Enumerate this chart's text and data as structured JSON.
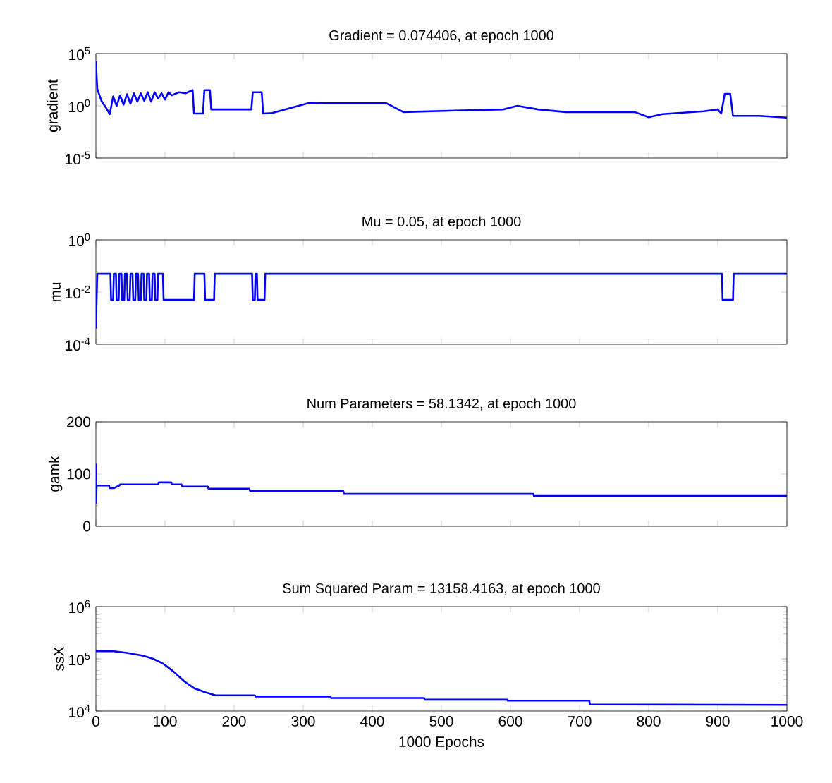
{
  "chart_data": [
    {
      "type": "line",
      "title": "Gradient = 0.074406, at epoch 1000",
      "ylabel": "gradient",
      "log": true,
      "tick_labels": "y",
      "color": "#0000ff",
      "xlim": [
        0,
        1000
      ],
      "xticks": [
        0,
        100,
        200,
        300,
        400,
        500,
        600,
        700,
        800,
        900,
        1000
      ],
      "ylim": [
        1e-05,
        100000
      ],
      "yticks": [
        {
          "value": 1e-05,
          "label": "10$^{-5}$"
        },
        {
          "value": 1,
          "label": "10$^{0}$"
        },
        {
          "value": 100000,
          "label": "10$^{5}$"
        }
      ],
      "x": [
        0,
        2,
        8,
        15,
        20,
        25,
        30,
        35,
        40,
        45,
        50,
        55,
        60,
        65,
        70,
        75,
        80,
        85,
        90,
        95,
        100,
        105,
        110,
        120,
        130,
        140,
        142,
        155,
        157,
        165,
        167,
        225,
        227,
        240,
        242,
        255,
        310,
        330,
        420,
        445,
        520,
        590,
        610,
        640,
        680,
        780,
        800,
        820,
        880,
        900,
        905,
        910,
        918,
        922,
        960,
        1000
      ],
      "values": [
        18000,
        40,
        3,
        0.6,
        0.16,
        8,
        1,
        10,
        1.3,
        13,
        1.6,
        16,
        2.5,
        16,
        3,
        20,
        2.5,
        20,
        5,
        16,
        4,
        20,
        10,
        20,
        16,
        32,
        0.18,
        0.18,
        32,
        32,
        0.45,
        0.45,
        20,
        20,
        0.18,
        0.2,
        2,
        1.8,
        1.8,
        0.25,
        0.35,
        0.45,
        1,
        0.45,
        0.25,
        0.25,
        0.08,
        0.16,
        0.3,
        0.45,
        0.18,
        14,
        14,
        0.11,
        0.11,
        0.074
      ]
    },
    {
      "type": "line",
      "title": "Mu = 0.05, at epoch 1000",
      "ylabel": "mu",
      "log": true,
      "tick_labels": "y",
      "color": "#0000ff",
      "xlim": [
        0,
        1000
      ],
      "xticks": [
        0,
        100,
        200,
        300,
        400,
        500,
        600,
        700,
        800,
        900,
        1000
      ],
      "ylim": [
        0.0001,
        1
      ],
      "yticks": [
        {
          "value": 0.0001,
          "label": "10$^{-4}$"
        },
        {
          "value": 0.01,
          "label": "10$^{-2}$"
        },
        {
          "value": 1,
          "label": "10$^{0}$"
        }
      ],
      "x": [
        0,
        2,
        21,
        22,
        25,
        26,
        29,
        30,
        33,
        34,
        37,
        38,
        41,
        42,
        45,
        46,
        49,
        50,
        53,
        54,
        57,
        58,
        61,
        62,
        65,
        66,
        69,
        70,
        73,
        74,
        77,
        78,
        81,
        82,
        85,
        86,
        89,
        90,
        97,
        98,
        142,
        143,
        157,
        158,
        171,
        172,
        226,
        227,
        230,
        231,
        233,
        234,
        244,
        245,
        906,
        907,
        922,
        923,
        1000
      ],
      "values": [
        0.0004,
        0.05,
        0.05,
        0.005,
        0.005,
        0.05,
        0.05,
        0.005,
        0.005,
        0.05,
        0.05,
        0.005,
        0.005,
        0.05,
        0.05,
        0.005,
        0.005,
        0.05,
        0.05,
        0.005,
        0.005,
        0.05,
        0.05,
        0.005,
        0.005,
        0.05,
        0.05,
        0.005,
        0.005,
        0.05,
        0.05,
        0.005,
        0.005,
        0.05,
        0.05,
        0.005,
        0.005,
        0.05,
        0.05,
        0.005,
        0.005,
        0.05,
        0.05,
        0.005,
        0.005,
        0.05,
        0.05,
        0.005,
        0.005,
        0.05,
        0.05,
        0.005,
        0.005,
        0.05,
        0.05,
        0.005,
        0.005,
        0.05,
        0.05
      ]
    },
    {
      "type": "line",
      "title": "Num Parameters = 58.1342, at epoch 1000",
      "ylabel": "gamk",
      "tick_labels": "y",
      "color": "#0000ff",
      "xlim": [
        0,
        1000
      ],
      "xticks": [
        0,
        100,
        200,
        300,
        400,
        500,
        600,
        700,
        800,
        900,
        1000
      ],
      "ylim": [
        0,
        200
      ],
      "yticks": [
        0,
        100,
        200
      ],
      "x": [
        0,
        0.5,
        1,
        19,
        20,
        26,
        34,
        35,
        45,
        90,
        91,
        109,
        110,
        124,
        125,
        136,
        162,
        163,
        222,
        223,
        358,
        359,
        633,
        634,
        1000
      ],
      "values": [
        120,
        45,
        78,
        78,
        73,
        73,
        78,
        80,
        80,
        80,
        84,
        84,
        80,
        80,
        76,
        76,
        76,
        72,
        72,
        68,
        68,
        62,
        62,
        58,
        58
      ]
    },
    {
      "type": "line",
      "title": "Sum Squared Param = 13158.4163, at epoch 1000",
      "xlabel": "1000 Epochs",
      "ylabel": "ssX",
      "log": true,
      "color": "#0000ff",
      "xlim": [
        0,
        1000
      ],
      "xticks": [
        0,
        100,
        200,
        300,
        400,
        500,
        600,
        700,
        800,
        900,
        1000
      ],
      "ylim": [
        10000,
        1000000
      ],
      "yticks": [
        {
          "value": 10000,
          "label": "10$^{4}$"
        },
        {
          "value": 100000,
          "label": "10$^{5}$"
        },
        {
          "value": 1000000,
          "label": "10$^{6}$"
        }
      ],
      "x": [
        0,
        26,
        45,
        68,
        83,
        98,
        113,
        128,
        143,
        158,
        173,
        230,
        231,
        339,
        340,
        475,
        476,
        595,
        596,
        714,
        715,
        1000
      ],
      "values": [
        140000,
        140000,
        130000,
        115000,
        100000,
        80000,
        56000,
        37000,
        27000,
        23000,
        20000,
        20000,
        19000,
        19000,
        17800,
        17800,
        16500,
        16500,
        15800,
        15800,
        13400,
        13158
      ]
    }
  ]
}
